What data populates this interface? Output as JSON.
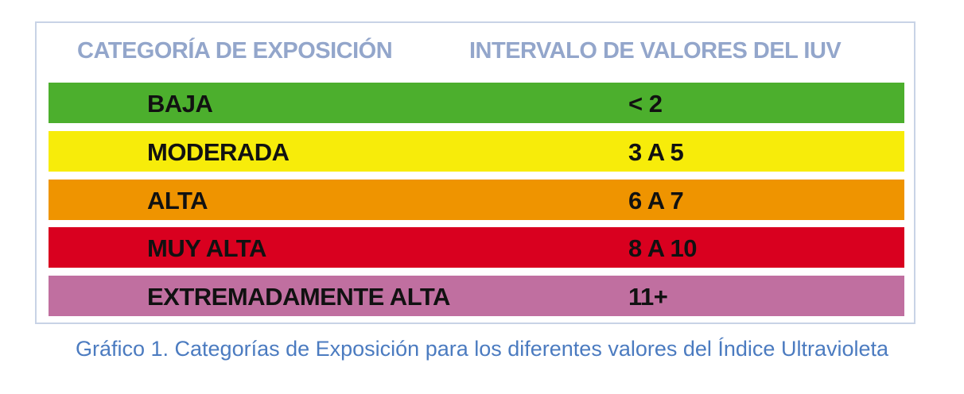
{
  "table": {
    "header": [
      "CATEGORÍA DE EXPOSICIÓN",
      "INTERVALO DE VALORES DEL IUV"
    ],
    "rows": [
      {
        "category": "BAJA",
        "range": "< 2",
        "color": "#4caf2d"
      },
      {
        "category": "MODERADA",
        "range": "3 A 5",
        "color": "#f7ec0a"
      },
      {
        "category": "ALTA",
        "range": "6 A 7",
        "color": "#ef9400"
      },
      {
        "category": "MUY ALTA",
        "range": "8 A 10",
        "color": "#d9001f"
      },
      {
        "category": "EXTREMADAMENTE ALTA",
        "range": "11+",
        "color": "#c06fa0"
      }
    ]
  },
  "caption": "Gráfico 1. Categorías de Exposición para los diferentes valores del Índice Ultravioleta"
}
